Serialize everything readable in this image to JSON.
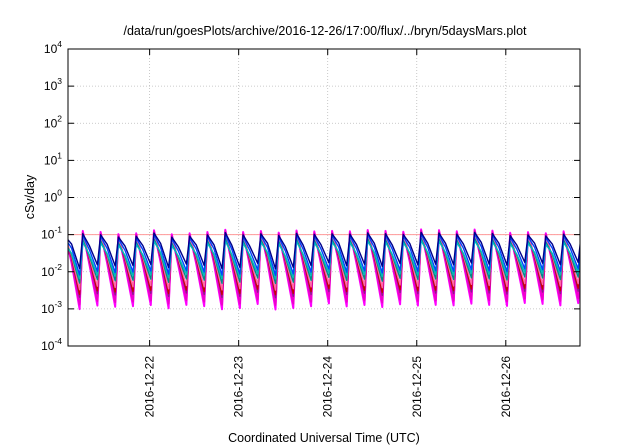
{
  "chart_data": {
    "type": "line",
    "title": "/data/run/goesPlots/archive/2016-12-26/17:00/flux/../bryn/5daysMars.plot",
    "xlabel": "Coordinated Universal Time (UTC)",
    "ylabel": "cSv/day",
    "yscale": "log",
    "ylim": [
      0.0001,
      10000
    ],
    "y_ticks": [
      {
        "base": "10",
        "exp": "-4",
        "value": 0.0001
      },
      {
        "base": "10",
        "exp": "-3",
        "value": 0.001
      },
      {
        "base": "10",
        "exp": "-2",
        "value": 0.01
      },
      {
        "base": "10",
        "exp": "-1",
        "value": 0.1
      },
      {
        "base": "10",
        "exp": "0",
        "value": 1
      },
      {
        "base": "10",
        "exp": "1",
        "value": 10
      },
      {
        "base": "10",
        "exp": "2",
        "value": 100
      },
      {
        "base": "10",
        "exp": "3",
        "value": 1000
      },
      {
        "base": "10",
        "exp": "4",
        "value": 10000
      }
    ],
    "xlim": [
      "2016-12-21 02:00",
      "2016-12-26 20:00"
    ],
    "x_ticks": [
      "2016-12-22",
      "2016-12-23",
      "2016-12-24",
      "2016-12-25",
      "2016-12-26"
    ],
    "grid": true,
    "reference_line": {
      "value": 0.1,
      "color": "#ff9999"
    },
    "series": [
      {
        "color": "#ff00ff",
        "peak": 0.12,
        "trough": 0.0012
      },
      {
        "color": "#ee00cc",
        "peak": 0.11,
        "trough": 0.0016
      },
      {
        "color": "#8b1a8b",
        "peak": 0.1,
        "trough": 0.0025
      },
      {
        "color": "#cc0000",
        "peak": 0.1,
        "trough": 0.003
      },
      {
        "color": "#ff66aa",
        "peak": 0.09,
        "trough": 0.004
      },
      {
        "color": "#008b8b",
        "peak": 0.07,
        "trough": 0.006
      },
      {
        "color": "#00bbbb",
        "peak": 0.06,
        "trough": 0.008
      },
      {
        "color": "#0044ff",
        "peak": 0.09,
        "trough": 0.01
      },
      {
        "color": "#00008b",
        "peak": 0.1,
        "trough": 0.015
      }
    ],
    "oscillation": {
      "period_hours": 4.8,
      "description": "sawtooth: sharp rise to peak then decay to trough each cycle"
    }
  }
}
